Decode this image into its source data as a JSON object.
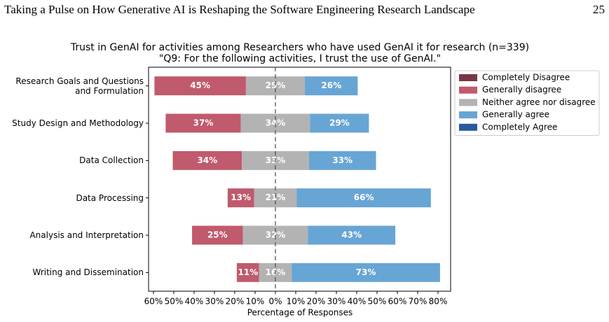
{
  "header": {
    "title": "Taking a Pulse on How Generative AI is Reshaping the Software Engineering Research Landscape",
    "page": "25"
  },
  "chart_data": {
    "type": "diverging-bar",
    "title": "Trust in GenAI for activities among Researchers who have used GenAI it for research (n=339)",
    "subtitle": "\"Q9: For the following activities, I trust the use of GenAI.\"",
    "x_label": "Percentage of Responses",
    "categories": [
      "Research Goals and Questions and Formulation",
      "Study Design and Methodology",
      "Data Collection",
      "Data Processing",
      "Analysis and Interpretation",
      "Writing and Dissemination"
    ],
    "series": [
      {
        "name": "Completely Disagree",
        "color": "#7b3645",
        "side": "negative",
        "values": [
          0,
          0,
          0,
          0,
          0,
          0
        ]
      },
      {
        "name": "Generally disagree",
        "color": "#c05a6d",
        "side": "negative",
        "values": [
          45,
          37,
          34,
          13,
          25,
          11
        ],
        "value_labels": [
          "45%",
          "37%",
          "34%",
          "13%",
          "25%",
          "11%"
        ]
      },
      {
        "name": "Neither agree nor disagree",
        "color": "#b3b3b3",
        "side": "neutral",
        "values": [
          29,
          34,
          33,
          21,
          32,
          16
        ],
        "value_labels": [
          "29%",
          "34%",
          "33%",
          "21%",
          "32%",
          "16%"
        ]
      },
      {
        "name": "Generally agree",
        "color": "#67a5d4",
        "side": "positive",
        "values": [
          26,
          29,
          33,
          66,
          43,
          73
        ],
        "value_labels": [
          "26%",
          "29%",
          "33%",
          "66%",
          "43%",
          "73%"
        ]
      },
      {
        "name": "Completely Agree",
        "color": "#2a5a9e",
        "side": "positive",
        "values": [
          0,
          0,
          0,
          0,
          0,
          0
        ]
      }
    ],
    "xlim": [
      -62.4,
      86.2
    ],
    "xticks": [
      {
        "value": -60,
        "label": "60%"
      },
      {
        "value": -50,
        "label": "50%"
      },
      {
        "value": -40,
        "label": "40%"
      },
      {
        "value": -30,
        "label": "30%"
      },
      {
        "value": -20,
        "label": "20%"
      },
      {
        "value": -10,
        "label": "10%"
      },
      {
        "value": 0,
        "label": "0%"
      },
      {
        "value": 10,
        "label": "10%"
      },
      {
        "value": 20,
        "label": "20%"
      },
      {
        "value": 30,
        "label": "30%"
      },
      {
        "value": 40,
        "label": "40%"
      },
      {
        "value": 50,
        "label": "50%"
      },
      {
        "value": 60,
        "label": "60%"
      },
      {
        "value": 70,
        "label": "70%"
      },
      {
        "value": 80,
        "label": "80%"
      }
    ],
    "legend": "upper-right-outside"
  }
}
